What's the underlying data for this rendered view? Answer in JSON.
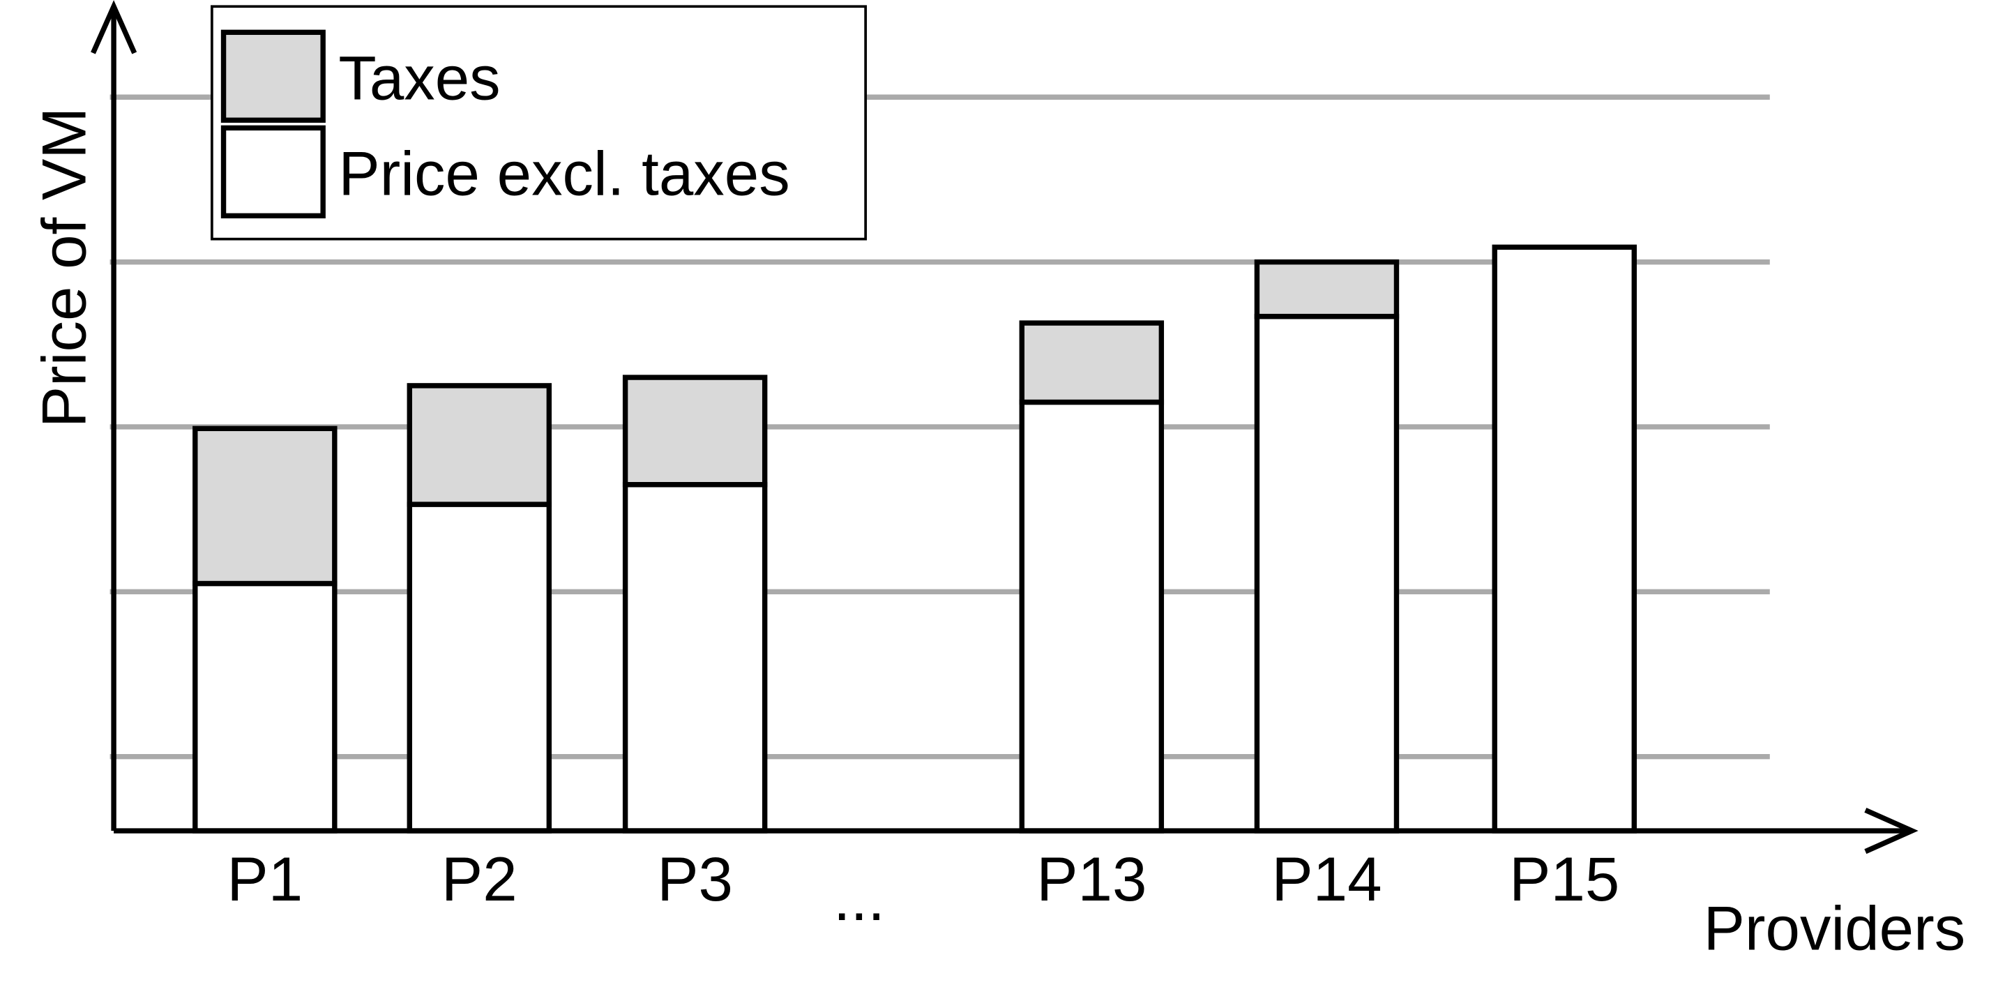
{
  "chart_data": {
    "type": "bar",
    "stacked": true,
    "x_label": "Providers",
    "y_label": "Price of VM",
    "categories": [
      "P1",
      "P2",
      "P3",
      "...",
      "P13",
      "P14",
      "P15"
    ],
    "series": [
      {
        "name": "Price excl. taxes",
        "color": "#ffffff",
        "values": [
          15.0,
          19.8,
          21.0,
          null,
          26.0,
          31.2,
          35.4
        ]
      },
      {
        "name": "Taxes",
        "color": "#d9d9d9",
        "values": [
          9.4,
          7.2,
          6.5,
          null,
          4.8,
          3.3,
          0
        ]
      }
    ],
    "ylim": [
      0,
      50
    ],
    "yticks": [
      4.5,
      14.5,
      24.5,
      34.5,
      44.5
    ],
    "grid": true,
    "legend": "upper left"
  }
}
